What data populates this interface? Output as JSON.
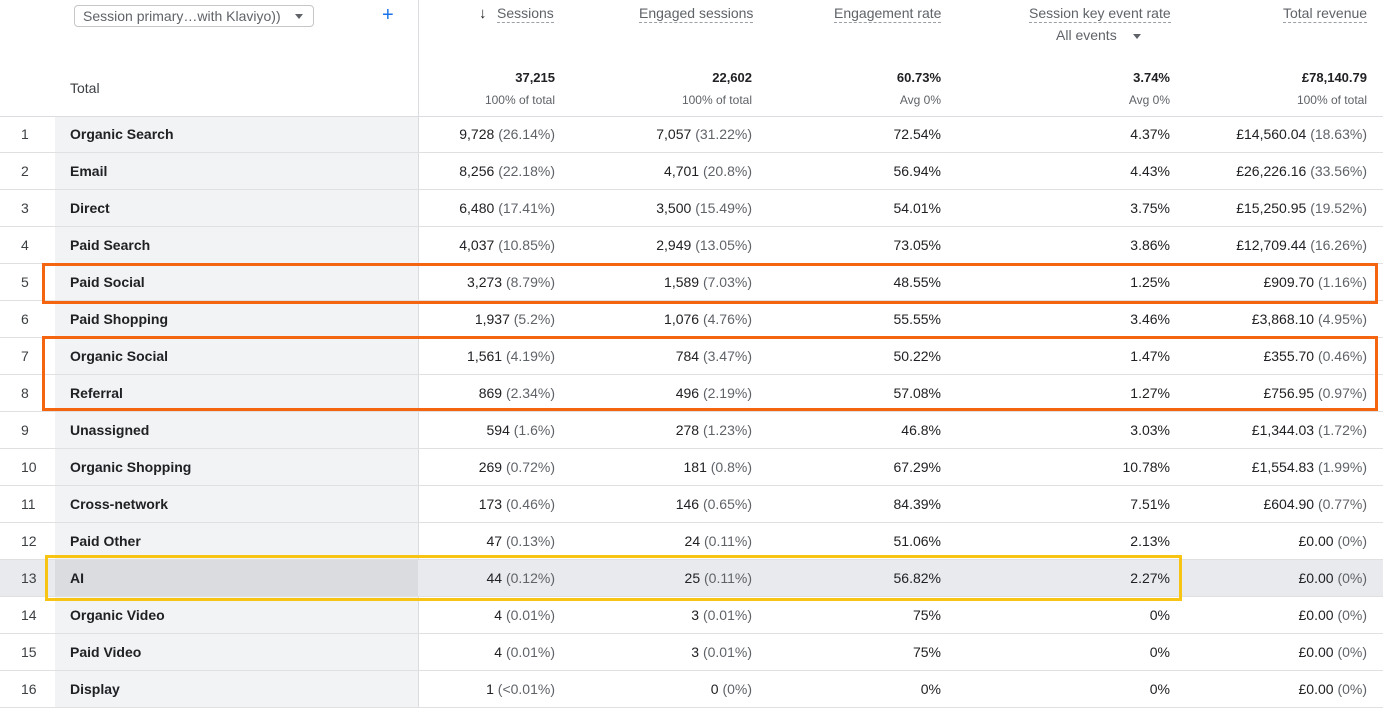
{
  "header": {
    "dimension_select": "Session primary…with Klaviyo))",
    "add_label": "+",
    "columns": [
      {
        "title": "Sessions",
        "sorted": true,
        "total": "37,215",
        "total_sub": "100% of total"
      },
      {
        "title": "Engaged sessions",
        "total": "22,602",
        "total_sub": "100% of total"
      },
      {
        "title": "Engagement rate",
        "total": "60.73%",
        "total_sub": "Avg 0%"
      },
      {
        "title": "Session key event rate",
        "subselect": "All events",
        "total": "3.74%",
        "total_sub": "Avg 0%"
      },
      {
        "title": "Total revenue",
        "total": "£78,140.79",
        "total_sub": "100% of total"
      }
    ],
    "total_label": "Total"
  },
  "rows": [
    {
      "idx": "1",
      "name": "Organic Search",
      "sessions": "9,728",
      "sessions_pct": "(26.14%)",
      "engaged": "7,057",
      "engaged_pct": "(31.22%)",
      "eng_rate": "72.54%",
      "key_rate": "4.37%",
      "revenue": "£14,560.04",
      "revenue_pct": "(18.63%)"
    },
    {
      "idx": "2",
      "name": "Email",
      "sessions": "8,256",
      "sessions_pct": "(22.18%)",
      "engaged": "4,701",
      "engaged_pct": "(20.8%)",
      "eng_rate": "56.94%",
      "key_rate": "4.43%",
      "revenue": "£26,226.16",
      "revenue_pct": "(33.56%)"
    },
    {
      "idx": "3",
      "name": "Direct",
      "sessions": "6,480",
      "sessions_pct": "(17.41%)",
      "engaged": "3,500",
      "engaged_pct": "(15.49%)",
      "eng_rate": "54.01%",
      "key_rate": "3.75%",
      "revenue": "£15,250.95",
      "revenue_pct": "(19.52%)"
    },
    {
      "idx": "4",
      "name": "Paid Search",
      "sessions": "4,037",
      "sessions_pct": "(10.85%)",
      "engaged": "2,949",
      "engaged_pct": "(13.05%)",
      "eng_rate": "73.05%",
      "key_rate": "3.86%",
      "revenue": "£12,709.44",
      "revenue_pct": "(16.26%)"
    },
    {
      "idx": "5",
      "name": "Paid Social",
      "sessions": "3,273",
      "sessions_pct": "(8.79%)",
      "engaged": "1,589",
      "engaged_pct": "(7.03%)",
      "eng_rate": "48.55%",
      "key_rate": "1.25%",
      "revenue": "£909.70",
      "revenue_pct": "(1.16%)"
    },
    {
      "idx": "6",
      "name": "Paid Shopping",
      "sessions": "1,937",
      "sessions_pct": "(5.2%)",
      "engaged": "1,076",
      "engaged_pct": "(4.76%)",
      "eng_rate": "55.55%",
      "key_rate": "3.46%",
      "revenue": "£3,868.10",
      "revenue_pct": "(4.95%)"
    },
    {
      "idx": "7",
      "name": "Organic Social",
      "sessions": "1,561",
      "sessions_pct": "(4.19%)",
      "engaged": "784",
      "engaged_pct": "(3.47%)",
      "eng_rate": "50.22%",
      "key_rate": "1.47%",
      "revenue": "£355.70",
      "revenue_pct": "(0.46%)"
    },
    {
      "idx": "8",
      "name": "Referral",
      "sessions": "869",
      "sessions_pct": "(2.34%)",
      "engaged": "496",
      "engaged_pct": "(2.19%)",
      "eng_rate": "57.08%",
      "key_rate": "1.27%",
      "revenue": "£756.95",
      "revenue_pct": "(0.97%)"
    },
    {
      "idx": "9",
      "name": "Unassigned",
      "sessions": "594",
      "sessions_pct": "(1.6%)",
      "engaged": "278",
      "engaged_pct": "(1.23%)",
      "eng_rate": "46.8%",
      "key_rate": "3.03%",
      "revenue": "£1,344.03",
      "revenue_pct": "(1.72%)"
    },
    {
      "idx": "10",
      "name": "Organic Shopping",
      "sessions": "269",
      "sessions_pct": "(0.72%)",
      "engaged": "181",
      "engaged_pct": "(0.8%)",
      "eng_rate": "67.29%",
      "key_rate": "10.78%",
      "revenue": "£1,554.83",
      "revenue_pct": "(1.99%)"
    },
    {
      "idx": "11",
      "name": "Cross-network",
      "sessions": "173",
      "sessions_pct": "(0.46%)",
      "engaged": "146",
      "engaged_pct": "(0.65%)",
      "eng_rate": "84.39%",
      "key_rate": "7.51%",
      "revenue": "£604.90",
      "revenue_pct": "(0.77%)"
    },
    {
      "idx": "12",
      "name": "Paid Other",
      "sessions": "47",
      "sessions_pct": "(0.13%)",
      "engaged": "24",
      "engaged_pct": "(0.11%)",
      "eng_rate": "51.06%",
      "key_rate": "2.13%",
      "revenue": "£0.00",
      "revenue_pct": "(0%)"
    },
    {
      "idx": "13",
      "name": "AI",
      "sessions": "44",
      "sessions_pct": "(0.12%)",
      "engaged": "25",
      "engaged_pct": "(0.11%)",
      "eng_rate": "56.82%",
      "key_rate": "2.27%",
      "revenue": "£0.00",
      "revenue_pct": "(0%)",
      "highlighted": true
    },
    {
      "idx": "14",
      "name": "Organic Video",
      "sessions": "4",
      "sessions_pct": "(0.01%)",
      "engaged": "3",
      "engaged_pct": "(0.01%)",
      "eng_rate": "75%",
      "key_rate": "0%",
      "revenue": "£0.00",
      "revenue_pct": "(0%)"
    },
    {
      "idx": "15",
      "name": "Paid Video",
      "sessions": "4",
      "sessions_pct": "(0.01%)",
      "engaged": "3",
      "engaged_pct": "(0.01%)",
      "eng_rate": "75%",
      "key_rate": "0%",
      "revenue": "£0.00",
      "revenue_pct": "(0%)"
    },
    {
      "idx": "16",
      "name": "Display",
      "sessions": "1",
      "sessions_pct": "(<0.01%)",
      "engaged": "0",
      "engaged_pct": "(0%)",
      "eng_rate": "0%",
      "key_rate": "0%",
      "revenue": "£0.00",
      "revenue_pct": "(0%)"
    }
  ],
  "annotations": {
    "orange_color": "#f5650f",
    "yellow_color": "#f7c414"
  }
}
